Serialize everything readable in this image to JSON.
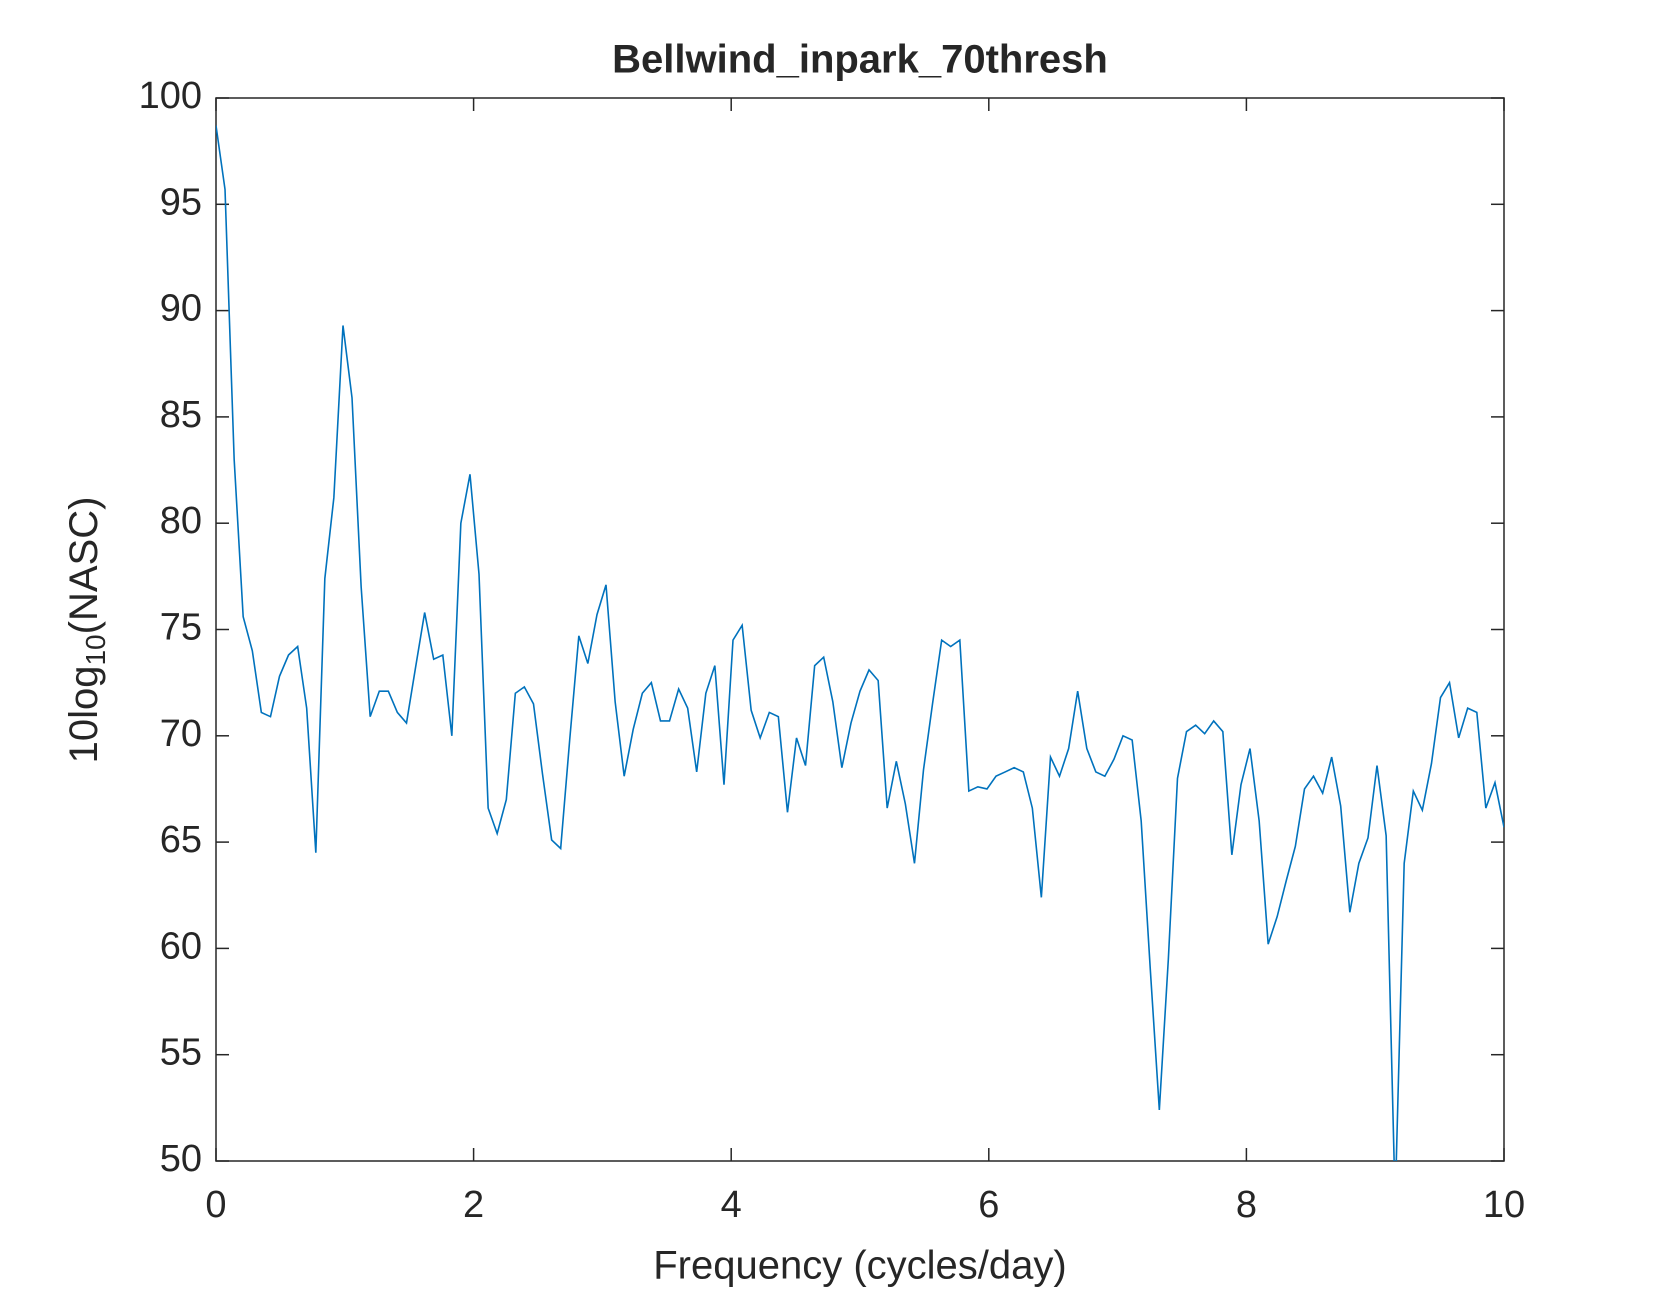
{
  "chart_data": {
    "type": "line",
    "title": "Bellwind_inpark_70thresh",
    "xlabel": "Frequency (cycles/day)",
    "ylabel_parts": [
      "10log",
      "10",
      "(NASC)"
    ],
    "xlim": [
      0,
      10
    ],
    "xticks": [
      0,
      2,
      4,
      6,
      8,
      10
    ],
    "ylim": [
      50,
      100
    ],
    "yticks": [
      50,
      55,
      60,
      65,
      70,
      75,
      80,
      85,
      90,
      95,
      100
    ],
    "grid": false,
    "box": true,
    "x": [
      0,
      0.07,
      0.141,
      0.211,
      0.282,
      0.352,
      0.423,
      0.493,
      0.563,
      0.634,
      0.704,
      0.775,
      0.845,
      0.915,
      0.986,
      1.056,
      1.127,
      1.197,
      1.268,
      1.338,
      1.408,
      1.479,
      1.549,
      1.62,
      1.69,
      1.761,
      1.831,
      1.901,
      1.972,
      2.042,
      2.113,
      2.183,
      2.254,
      2.324,
      2.394,
      2.465,
      2.535,
      2.606,
      2.676,
      2.746,
      2.817,
      2.887,
      2.958,
      3.028,
      3.099,
      3.169,
      3.239,
      3.31,
      3.38,
      3.451,
      3.521,
      3.592,
      3.662,
      3.732,
      3.803,
      3.873,
      3.944,
      4.014,
      4.085,
      4.155,
      4.225,
      4.296,
      4.366,
      4.437,
      4.507,
      4.577,
      4.648,
      4.718,
      4.789,
      4.859,
      4.93,
      5.0,
      5.07,
      5.141,
      5.211,
      5.282,
      5.352,
      5.423,
      5.493,
      5.563,
      5.634,
      5.704,
      5.775,
      5.845,
      5.915,
      5.986,
      6.056,
      6.127,
      6.197,
      6.268,
      6.338,
      6.408,
      6.479,
      6.549,
      6.62,
      6.69,
      6.761,
      6.831,
      6.901,
      6.972,
      7.042,
      7.113,
      7.183,
      7.254,
      7.324,
      7.394,
      7.465,
      7.535,
      7.606,
      7.676,
      7.746,
      7.817,
      7.887,
      7.958,
      8.028,
      8.099,
      8.169,
      8.239,
      8.31,
      8.38,
      8.451,
      8.521,
      8.592,
      8.662,
      8.732,
      8.803,
      8.873,
      8.944,
      9.014,
      9.085,
      9.155,
      9.225,
      9.296,
      9.366,
      9.437,
      9.507,
      9.577,
      9.648,
      9.718,
      9.789,
      9.859,
      9.93,
      10.0
    ],
    "series": [
      {
        "color": "#0072bd",
        "values": [
          98.7,
          95.7,
          83,
          75.6,
          74,
          71.1,
          70.9,
          72.8,
          73.8,
          74.2,
          71.3,
          64.5,
          77.4,
          81.2,
          89.3,
          85.9,
          77,
          70.9,
          72.1,
          72.1,
          71.1,
          70.6,
          73.2,
          75.8,
          73.6,
          73.8,
          70,
          80,
          82.3,
          77.6,
          66.6,
          65.4,
          67,
          72,
          72.3,
          71.5,
          68.2,
          65.1,
          64.7,
          69.8,
          74.7,
          73.4,
          75.7,
          77.1,
          71.6,
          68.1,
          70.3,
          72,
          72.5,
          70.7,
          70.7,
          72.2,
          71.3,
          68.3,
          72,
          73.3,
          67.7,
          74.5,
          75.2,
          71.2,
          69.9,
          71.1,
          70.9,
          66.4,
          69.9,
          68.6,
          73.3,
          73.7,
          71.6,
          68.5,
          70.6,
          72.1,
          73.1,
          72.6,
          66.6,
          68.8,
          66.8,
          64,
          68.4,
          71.5,
          74.5,
          74.2,
          74.5,
          67.4,
          67.6,
          67.5,
          68.1,
          68.3,
          68.5,
          68.3,
          66.6,
          62.4,
          69,
          68.1,
          69.4,
          72.1,
          69.4,
          68.3,
          68.1,
          68.9,
          70,
          69.8,
          66,
          59,
          52.4,
          59.5,
          68,
          70.2,
          70.5,
          70.1,
          70.7,
          70.2,
          64.4,
          67.7,
          69.4,
          66,
          60.2,
          61.5,
          63.2,
          64.8,
          67.5,
          68.1,
          67.3,
          69,
          66.7,
          61.7,
          64,
          65.2,
          68.6,
          65.3,
          48,
          64,
          67.4,
          66.5,
          68.7,
          71.8,
          72.5,
          69.9,
          71.3,
          71.1,
          66.6,
          67.8,
          65.7
        ]
      }
    ]
  }
}
